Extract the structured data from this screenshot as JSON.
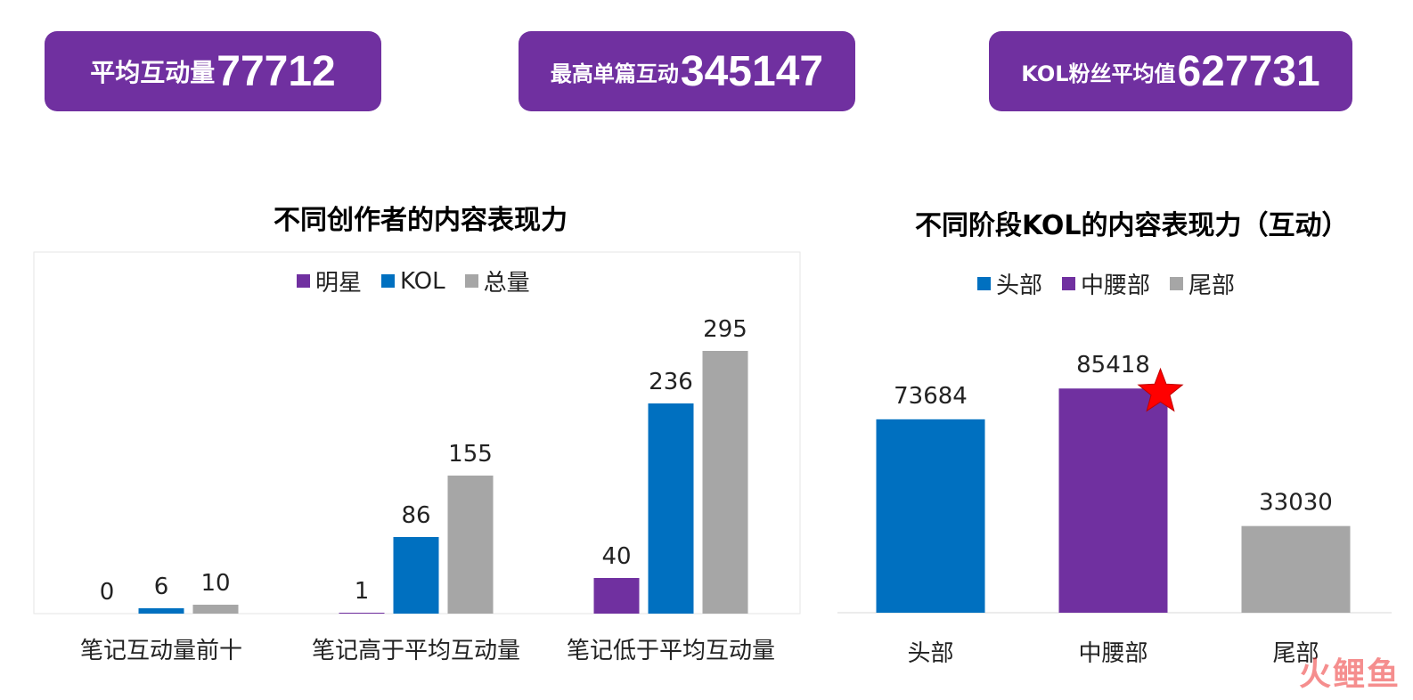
{
  "stats": [
    {
      "label": "平均互动量",
      "value": "77712"
    },
    {
      "label": "最高单篇互动",
      "value": "345147"
    },
    {
      "label": "KOL粉丝平均值",
      "value": "627731"
    }
  ],
  "colors": {
    "purple": "#7030a0",
    "blue": "#0070c0",
    "gray": "#a6a6a6",
    "star": "#ff0000"
  },
  "chart_data": [
    {
      "type": "bar",
      "title": "不同创作者的内容表现力",
      "legend_position": "top",
      "categories": [
        "笔记互动量前十",
        "笔记高于平均互动量",
        "笔记低于平均互动量"
      ],
      "series": [
        {
          "name": "明星",
          "color": "#7030a0",
          "values": [
            0,
            1,
            40
          ]
        },
        {
          "name": "KOL",
          "color": "#0070c0",
          "values": [
            6,
            86,
            236
          ]
        },
        {
          "name": "总量",
          "color": "#a6a6a6",
          "values": [
            10,
            155,
            295
          ]
        }
      ],
      "ylim": [
        0,
        330
      ],
      "grid": false
    },
    {
      "type": "bar",
      "title": "不同阶段KOL的内容表现力（互动）",
      "legend_position": "top",
      "categories": [
        "头部",
        "中腰部",
        "尾部"
      ],
      "legend": [
        {
          "name": "头部",
          "color": "#0070c0"
        },
        {
          "name": "中腰部",
          "color": "#7030a0"
        },
        {
          "name": "尾部",
          "color": "#a6a6a6"
        }
      ],
      "values": [
        73684,
        85418,
        33030
      ],
      "colors": [
        "#0070c0",
        "#7030a0",
        "#a6a6a6"
      ],
      "highlight_icon": "star-icon",
      "highlight_index": 1,
      "ylim": [
        0,
        95000
      ],
      "grid": false
    }
  ],
  "watermark": "火鲤鱼"
}
